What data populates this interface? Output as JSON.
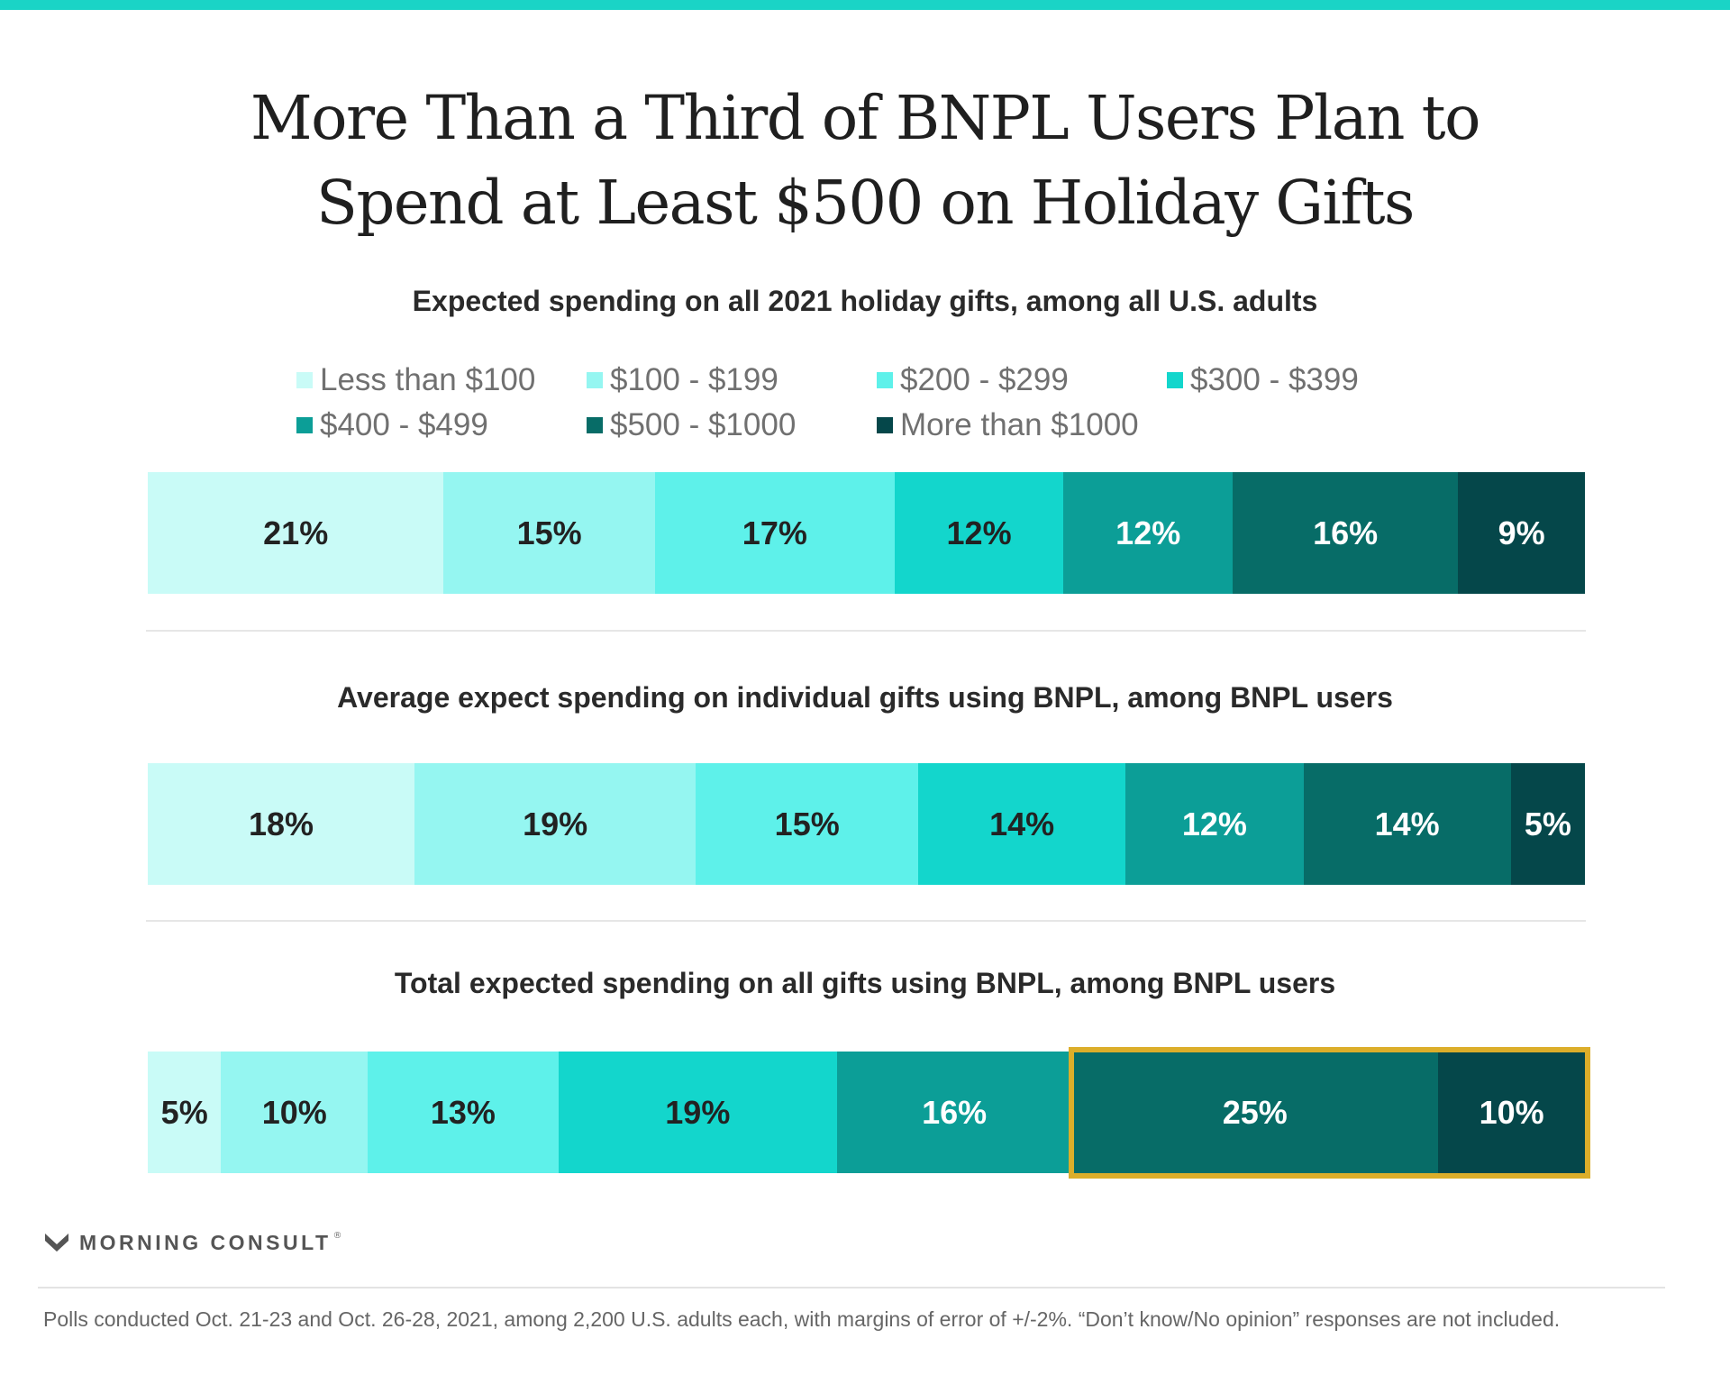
{
  "colors": {
    "accent_top_bar": "#1ad4c6",
    "highlight_border": "#dcae2a",
    "categories": [
      "#c9fbf7",
      "#95f6f1",
      "#5ef1ea",
      "#13d6cc",
      "#0c9e97",
      "#076c67",
      "#05474a"
    ]
  },
  "title_lines": [
    "More Than a Third of BNPL Users Plan to",
    "Spend at Least $500 on Holiday Gifts"
  ],
  "chart_data": {
    "type": "bar",
    "orientation": "horizontal-stacked-100",
    "categories": [
      "Less than $100",
      "$100 - $199",
      "$200 - $299",
      "$300 - $399",
      "$400 - $499",
      "$500 - $1000",
      "More than $1000"
    ],
    "legend_placement": "top",
    "grid": false,
    "series": [
      {
        "name": "Expected spending on all 2021 holiday gifts, among all U.S. adults",
        "values": [
          21,
          15,
          17,
          12,
          12,
          16,
          9
        ]
      },
      {
        "name": "Average expect spending on individual gifts using BNPL, among BNPL users",
        "values": [
          18,
          19,
          15,
          14,
          12,
          14,
          5
        ]
      },
      {
        "name": "Total expected spending on all gifts using BNPL, among BNPL users",
        "values": [
          5,
          10,
          13,
          19,
          16,
          25,
          10
        ],
        "highlighted_categories": [
          "$500 - $1000",
          "More than $1000"
        ]
      }
    ],
    "value_suffix": "%"
  },
  "brand": {
    "name": "MORNING CONSULT",
    "mark": "®"
  },
  "footnote": "Polls conducted Oct. 21-23 and Oct. 26-28, 2021, among 2,200 U.S. adults each, with margins of error of +/-2%. “Don’t know/No opinion” responses are not included."
}
